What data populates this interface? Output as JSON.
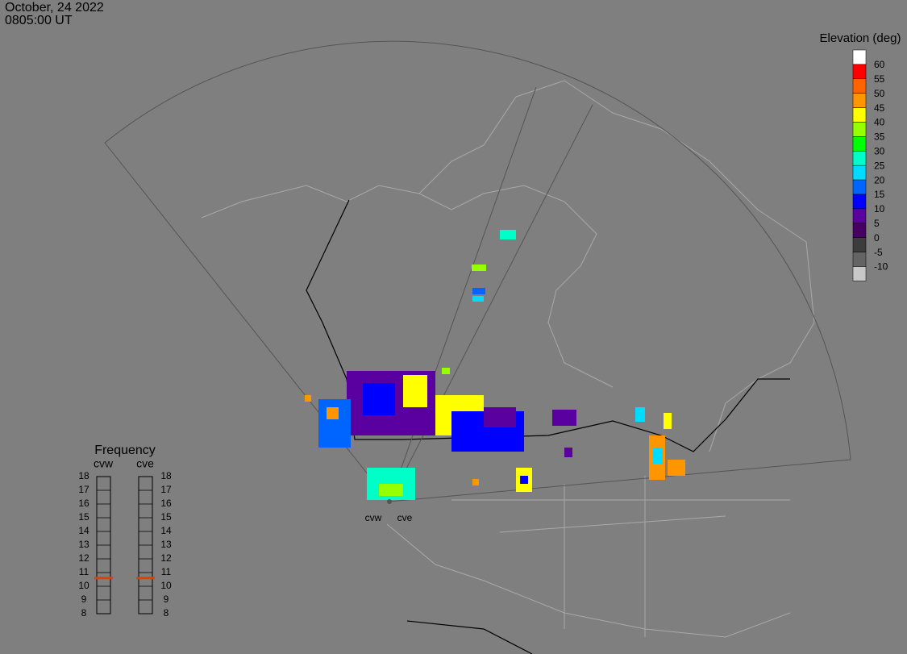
{
  "header": {
    "date": "October, 24 2022",
    "time": "0805:00 UT"
  },
  "legend": {
    "title": "Elevation (deg)",
    "colors": [
      "#ffffff",
      "#ff0000",
      "#ff6400",
      "#ff9600",
      "#ffff00",
      "#96ff00",
      "#00ff00",
      "#00ffc8",
      "#00dcff",
      "#0064ff",
      "#0000ff",
      "#5a00a0",
      "#460064",
      "#3c3c3c",
      "#646464",
      "#c8c8c8"
    ],
    "labels": [
      "60",
      "55",
      "50",
      "45",
      "40",
      "35",
      "30",
      "25",
      "20",
      "15",
      "10",
      "5",
      "0",
      "-5",
      "-10"
    ]
  },
  "frequency": {
    "title": "Frequency",
    "ticks": [
      18,
      17,
      16,
      15,
      14,
      13,
      12,
      11,
      10,
      9,
      8
    ],
    "radars": [
      {
        "name": "cvw",
        "value": 10.6
      },
      {
        "name": "cve",
        "value": 10.6
      }
    ]
  },
  "radar_labels": [
    "cvw",
    "cve"
  ]
}
